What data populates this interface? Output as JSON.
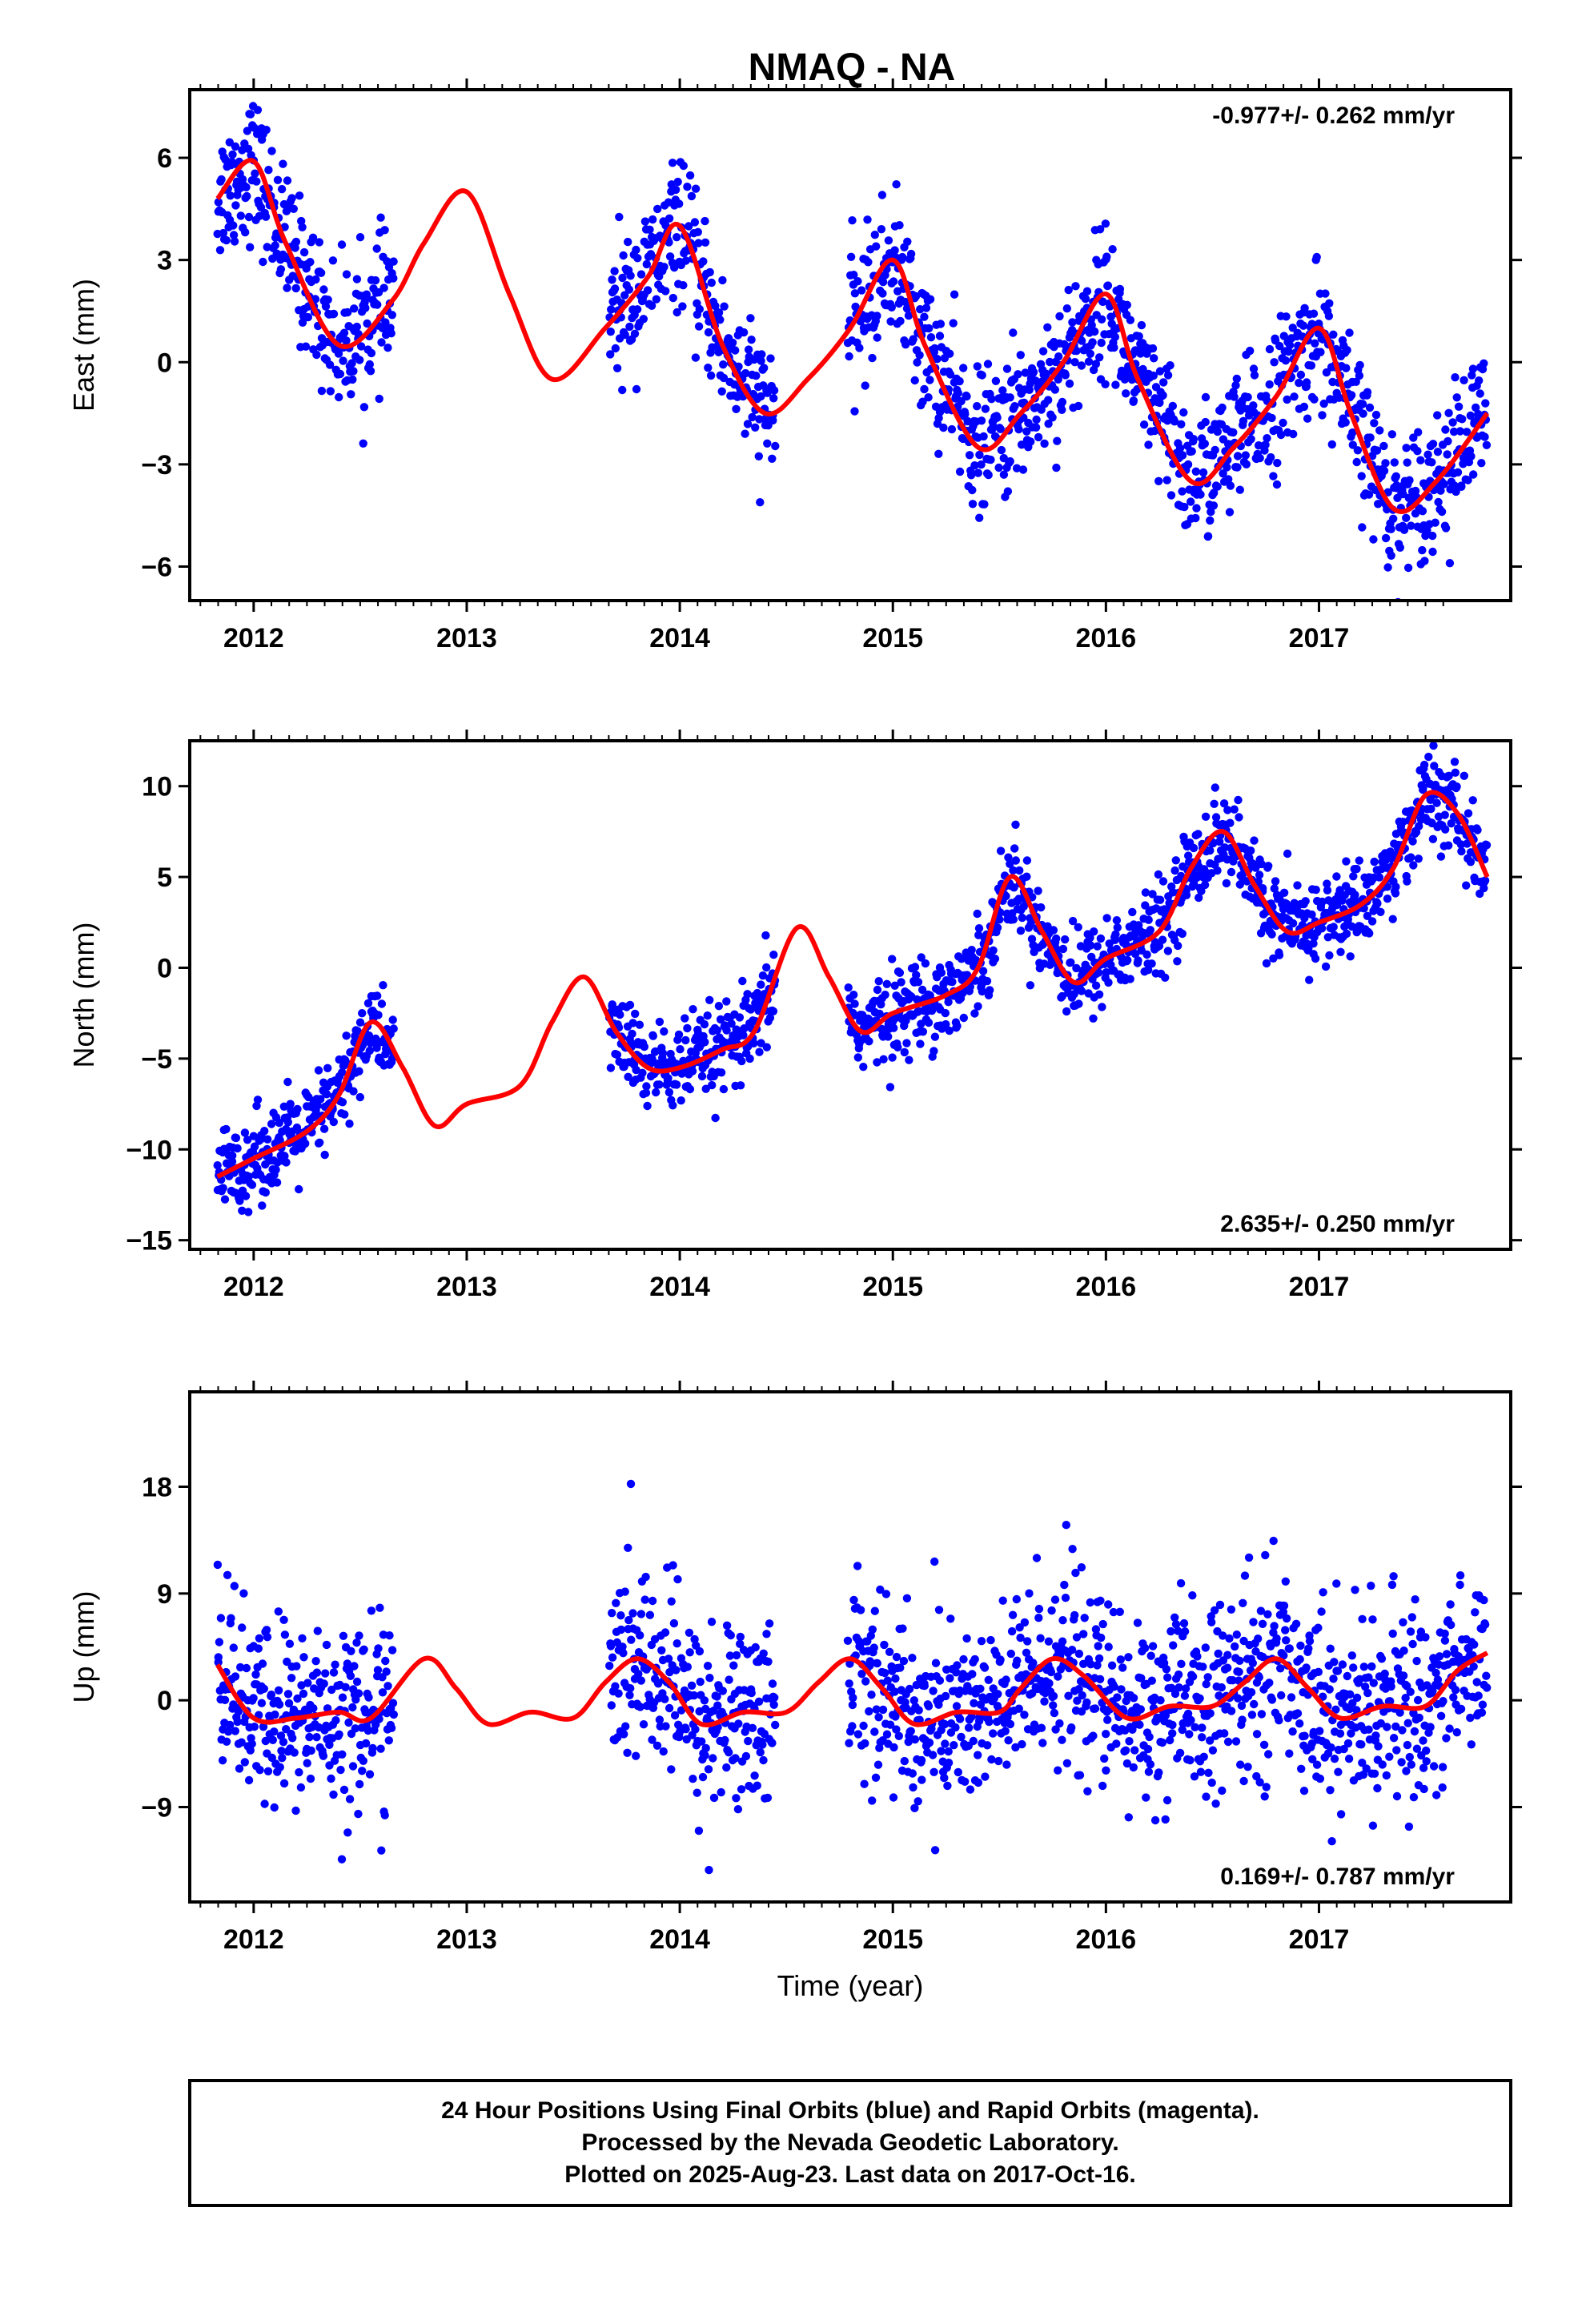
{
  "title": "NMAQ - NA",
  "footer": {
    "line1": "24 Hour Positions Using Final Orbits (blue) and Rapid Orbits (magenta).",
    "line2": "Processed by the Nevada Geodetic Laboratory.",
    "line3": "Plotted on 2025-Aug-23. Last data on 2017-Oct-16."
  },
  "colors": {
    "points": "#0000ff",
    "fit": "#ff0000",
    "frame": "#000000"
  },
  "chart_data": [
    {
      "type": "scatter",
      "ylabel": "East (mm)",
      "xlabel": "",
      "xlim": [
        2011.7,
        2017.9
      ],
      "ylim": [
        -7,
        8
      ],
      "grid": false,
      "xticks": [
        "2012",
        "2013",
        "2014",
        "2015",
        "2016",
        "2017"
      ],
      "yticks": [
        "-6",
        "-3",
        "0",
        "3",
        "6"
      ],
      "rate_text": "-0.977+/- 0.262 mm/yr",
      "rate_position": "top-right",
      "series": [
        {
          "role": "final orbits (blue points)",
          "data_ranges": [
            [
              2011.83,
              2012.66
            ],
            [
              2013.67,
              2014.45
            ],
            [
              2014.79,
              2017.79
            ]
          ],
          "trend_mm_per_yr": -0.977,
          "annual_amp_mm": 3.0,
          "noise_mm": 1.0
        },
        {
          "role": "model fit (red line)",
          "x": [
            2011.83,
            2012.0,
            2012.15,
            2012.4,
            2012.65,
            2012.8,
            2013.0,
            2013.2,
            2013.4,
            2013.65,
            2013.85,
            2014.0,
            2014.2,
            2014.4,
            2014.6,
            2014.8,
            2015.0,
            2015.15,
            2015.4,
            2015.6,
            2015.8,
            2016.0,
            2016.15,
            2016.4,
            2016.6,
            2016.8,
            2017.0,
            2017.15,
            2017.35,
            2017.55,
            2017.79
          ],
          "y": [
            4.8,
            5.9,
            3.5,
            0.5,
            1.8,
            3.5,
            5.0,
            2.0,
            -0.5,
            1.0,
            2.5,
            4.0,
            0.5,
            -1.5,
            -0.5,
            1.0,
            3.0,
            0.5,
            -2.5,
            -1.5,
            0.0,
            2.0,
            -0.5,
            -3.5,
            -2.5,
            -1.0,
            1.0,
            -1.5,
            -4.3,
            -3.5,
            -1.5
          ]
        }
      ]
    },
    {
      "type": "scatter",
      "ylabel": "North (mm)",
      "xlabel": "",
      "xlim": [
        2011.7,
        2017.9
      ],
      "ylim": [
        -15.5,
        12.5
      ],
      "grid": false,
      "xticks": [
        "2012",
        "2013",
        "2014",
        "2015",
        "2016",
        "2017"
      ],
      "yticks": [
        "-15",
        "-10",
        "-5",
        "0",
        "5",
        "10"
      ],
      "rate_text": "2.635+/- 0.250 mm/yr",
      "rate_position": "bottom-right",
      "series": [
        {
          "role": "final orbits (blue points)",
          "data_ranges": [
            [
              2011.83,
              2012.66
            ],
            [
              2013.67,
              2014.45
            ],
            [
              2014.79,
              2017.79
            ]
          ],
          "trend_mm_per_yr": 2.635,
          "annual_amp_mm": 2.5,
          "noise_mm": 1.2
        },
        {
          "role": "model fit (red line)",
          "x": [
            2011.83,
            2012.0,
            2012.25,
            2012.4,
            2012.55,
            2012.7,
            2012.85,
            2013.0,
            2013.25,
            2013.4,
            2013.55,
            2013.7,
            2013.85,
            2014.0,
            2014.2,
            2014.35,
            2014.55,
            2014.7,
            2014.85,
            2015.0,
            2015.25,
            2015.4,
            2015.55,
            2015.7,
            2015.85,
            2016.0,
            2016.25,
            2016.4,
            2016.55,
            2016.7,
            2016.85,
            2017.0,
            2017.2,
            2017.35,
            2017.5,
            2017.65,
            2017.79
          ],
          "y": [
            -11.5,
            -10.5,
            -9.0,
            -7.0,
            -3.0,
            -5.5,
            -8.7,
            -7.5,
            -6.5,
            -3.0,
            -0.5,
            -3.5,
            -5.5,
            -5.5,
            -4.5,
            -3.5,
            2.2,
            -0.5,
            -3.5,
            -2.5,
            -1.5,
            0.0,
            5.0,
            2.0,
            -0.8,
            0.5,
            2.0,
            5.5,
            7.5,
            4.5,
            2.0,
            2.5,
            3.5,
            5.5,
            9.5,
            8.5,
            5.0
          ]
        }
      ]
    },
    {
      "type": "scatter",
      "ylabel": "Up (mm)",
      "xlabel": "Time (year)",
      "xlim": [
        2011.7,
        2017.9
      ],
      "ylim": [
        -17,
        26
      ],
      "grid": false,
      "xticks": [
        "2012",
        "2013",
        "2014",
        "2015",
        "2016",
        "2017"
      ],
      "yticks": [
        "-9",
        "0",
        "9",
        "18"
      ],
      "rate_text": "0.169+/- 0.787 mm/yr",
      "rate_position": "bottom-right",
      "series": [
        {
          "role": "final orbits (blue points)",
          "data_ranges": [
            [
              2011.83,
              2012.66
            ],
            [
              2013.67,
              2014.45
            ],
            [
              2014.79,
              2017.79
            ]
          ],
          "trend_mm_per_yr": 0.169,
          "annual_amp_mm": 2.0,
          "noise_mm": 4.0
        },
        {
          "role": "model fit (red line)",
          "x": [
            2011.83,
            2012.0,
            2012.2,
            2012.4,
            2012.55,
            2012.8,
            2012.95,
            2013.1,
            2013.3,
            2013.5,
            2013.65,
            2013.8,
            2013.95,
            2014.1,
            2014.3,
            2014.5,
            2014.65,
            2014.8,
            2014.95,
            2015.1,
            2015.3,
            2015.5,
            2015.6,
            2015.75,
            2015.9,
            2016.1,
            2016.3,
            2016.5,
            2016.65,
            2016.8,
            2016.95,
            2017.1,
            2017.3,
            2017.5,
            2017.65,
            2017.79
          ],
          "y": [
            3.0,
            -1.5,
            -1.5,
            -1.0,
            -1.5,
            3.5,
            1.0,
            -2.0,
            -1.0,
            -1.5,
            1.5,
            3.5,
            1.5,
            -2.0,
            -1.0,
            -1.0,
            1.5,
            3.5,
            1.0,
            -2.0,
            -1.0,
            -1.0,
            1.0,
            3.5,
            2.0,
            -1.5,
            -0.5,
            -0.5,
            1.5,
            3.5,
            1.0,
            -1.5,
            -0.5,
            -0.5,
            2.5,
            4.0
          ]
        }
      ]
    }
  ]
}
